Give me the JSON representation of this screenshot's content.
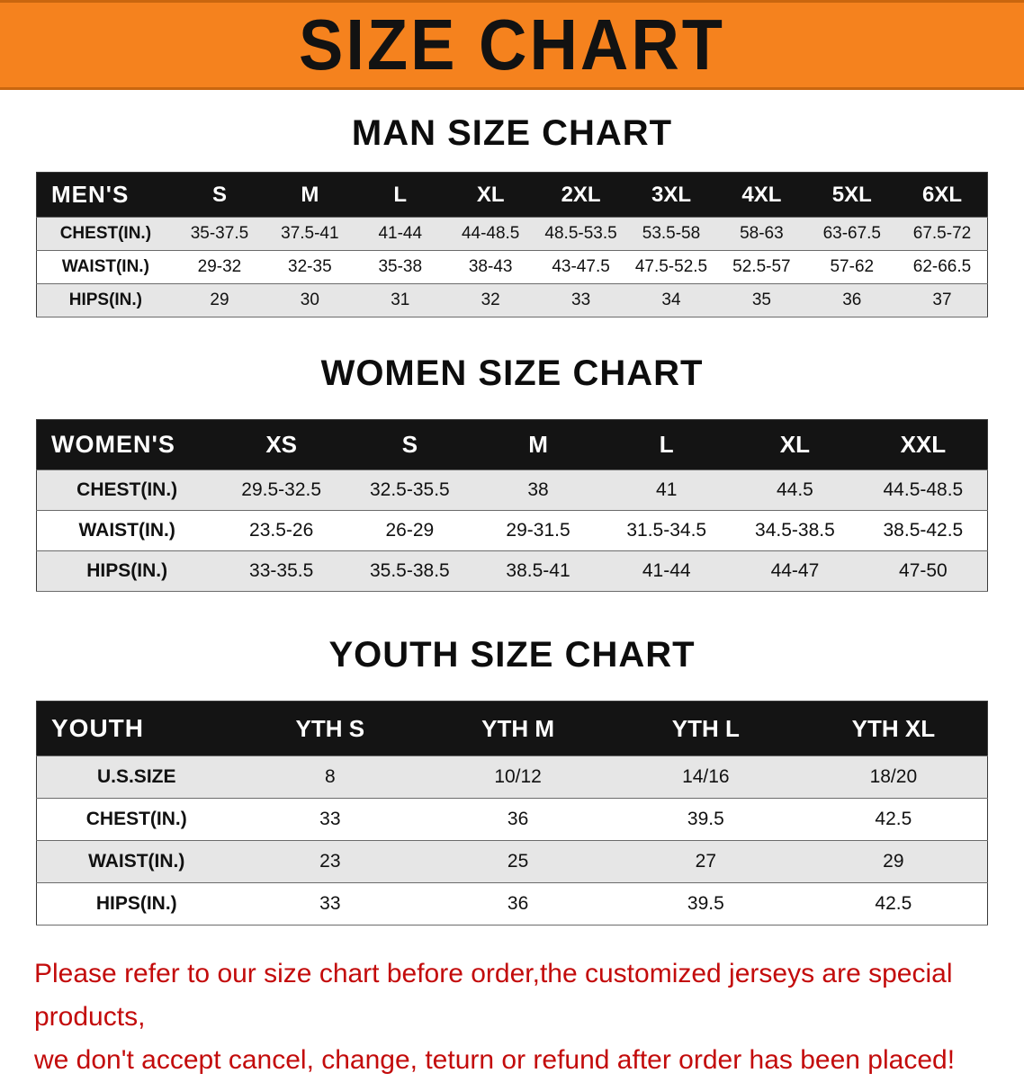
{
  "colors": {
    "banner_bg": "#f5821e",
    "header_bg": "#141414",
    "row_alt": "#e6e6e6",
    "text_red": "#c30b0b"
  },
  "banner": {
    "title": "SIZE CHART"
  },
  "sections": [
    {
      "heading": "MAN SIZE CHART",
      "header": [
        "MEN'S",
        "S",
        "M",
        "L",
        "XL",
        "2XL",
        "3XL",
        "4XL",
        "5XL",
        "6XL"
      ],
      "rows": [
        {
          "label": "CHEST(IN.)",
          "values": [
            "35-37.5",
            "37.5-41",
            "41-44",
            "44-48.5",
            "48.5-53.5",
            "53.5-58",
            "58-63",
            "63-67.5",
            "67.5-72"
          ]
        },
        {
          "label": "WAIST(IN.)",
          "values": [
            "29-32",
            "32-35",
            "35-38",
            "38-43",
            "43-47.5",
            "47.5-52.5",
            "52.5-57",
            "57-62",
            "62-66.5"
          ]
        },
        {
          "label": "HIPS(IN.)",
          "values": [
            "29",
            "30",
            "31",
            "32",
            "33",
            "34",
            "35",
            "36",
            "37"
          ]
        }
      ]
    },
    {
      "heading": "WOMEN SIZE CHART",
      "header": [
        "WOMEN'S",
        "XS",
        "S",
        "M",
        "L",
        "XL",
        "XXL"
      ],
      "rows": [
        {
          "label": "CHEST(IN.)",
          "values": [
            "29.5-32.5",
            "32.5-35.5",
            "38",
            "41",
            "44.5",
            "44.5-48.5"
          ]
        },
        {
          "label": "WAIST(IN.)",
          "values": [
            "23.5-26",
            "26-29",
            "29-31.5",
            "31.5-34.5",
            "34.5-38.5",
            "38.5-42.5"
          ]
        },
        {
          "label": "HIPS(IN.)",
          "values": [
            "33-35.5",
            "35.5-38.5",
            "38.5-41",
            "41-44",
            "44-47",
            "47-50"
          ]
        }
      ]
    },
    {
      "heading": "YOUTH SIZE CHART",
      "header": [
        "YOUTH",
        "YTH S",
        "YTH M",
        "YTH L",
        "YTH XL"
      ],
      "rows": [
        {
          "label": "U.S.SIZE",
          "values": [
            "8",
            "10/12",
            "14/16",
            "18/20"
          ]
        },
        {
          "label": "CHEST(IN.)",
          "values": [
            "33",
            "36",
            "39.5",
            "42.5"
          ]
        },
        {
          "label": "WAIST(IN.)",
          "values": [
            "23",
            "25",
            "27",
            "29"
          ]
        },
        {
          "label": "HIPS(IN.)",
          "values": [
            "33",
            "36",
            "39.5",
            "42.5"
          ]
        }
      ]
    }
  ],
  "footer": {
    "line1": "Please refer to our size chart before order,the customized jerseys are special products,",
    "line2": "we don't accept cancel, change, teturn or refund after order has been placed!"
  }
}
